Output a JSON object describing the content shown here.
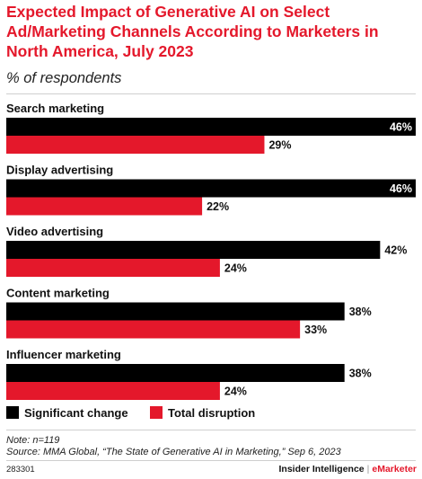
{
  "header": {
    "title": "Expected Impact of Generative AI on Select Ad/Marketing Channels According to Marketers in North America, July 2023",
    "subtitle": "% of respondents"
  },
  "colors": {
    "series_1": "#000000",
    "series_2": "#e4182b",
    "accent": "#e4182b"
  },
  "chart_data": {
    "type": "bar",
    "orientation": "horizontal",
    "categories": [
      "Search marketing",
      "Display advertising",
      "Video advertising",
      "Content marketing",
      "Influencer marketing"
    ],
    "series": [
      {
        "name": "Significant change",
        "values": [
          46,
          46,
          42,
          38,
          38
        ]
      },
      {
        "name": "Total disruption",
        "values": [
          29,
          22,
          24,
          33,
          24
        ]
      }
    ],
    "value_suffix": "%",
    "xlim": [
      0,
      46
    ],
    "grid": false,
    "legend_position": "bottom-left"
  },
  "legend": {
    "items": [
      "Significant change",
      "Total disruption"
    ]
  },
  "note": "Note: n=119",
  "source": "Source: MMA Global, “The State of Generative AI in Marketing,” Sep 6, 2023",
  "footer": {
    "id": "283301",
    "brand_left": "Insider Intelligence",
    "brand_sep": "|",
    "brand_right": "eMarketer"
  }
}
